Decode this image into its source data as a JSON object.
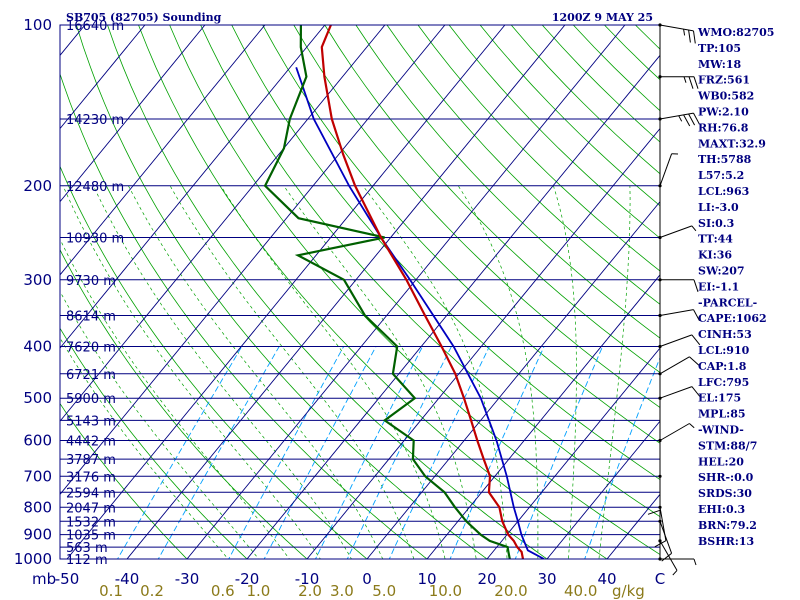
{
  "header": {
    "station": "SB705 (82705) Sounding",
    "time": "1200Z  9 MAY 25"
  },
  "axis": {
    "mb_label": "mb",
    "gkg_label": "g/kg"
  },
  "indices": [
    "WMO:82705",
    "TP:105",
    "MW:18",
    "FRZ:561",
    "WB0:582",
    "PW:2.10",
    "RH:76.8",
    "MAXT:32.9",
    "TH:5788",
    "L57:5.2",
    "LCL:963",
    "LI:-3.0",
    "SI:0.3",
    "TT:44",
    "KI:36",
    "SW:207",
    "EI:-1.1",
    "-PARCEL-",
    "CAPE:1062",
    "CINH:53",
    "LCL:910",
    "CAP:1.8",
    "LFC:795",
    "EL:175",
    "MPL:85",
    "-WIND-",
    "STM:88/7",
    "HEL:20",
    "SHR-:0.0",
    "SRDS:30",
    "EHI:0.3",
    "BRN:79.2",
    "BSHR:13"
  ],
  "chart_data": {
    "type": "skew-t",
    "title": "SB705 (82705) Sounding",
    "subtitle": "1200Z  9 MAY 25",
    "xlabel": "",
    "ylabel": "mb",
    "y_scale": "log",
    "ylim": [
      1000,
      100
    ],
    "x_ticks": [
      "-50",
      "-40",
      "-30",
      "-20",
      "-10",
      "0",
      "10",
      "20",
      "30",
      "40",
      "C"
    ],
    "x_tick_values": [
      -50,
      -40,
      -30,
      -20,
      -10,
      0,
      10,
      20,
      30,
      40
    ],
    "pressure_levels": [
      {
        "p": 100,
        "label": "100",
        "height": "16640 m"
      },
      {
        "p": 150,
        "label": "",
        "height": "14230 m"
      },
      {
        "p": 200,
        "label": "200",
        "height": "12480 m"
      },
      {
        "p": 250,
        "label": "",
        "height": "10930 m"
      },
      {
        "p": 300,
        "label": "300",
        "height": "9730 m"
      },
      {
        "p": 350,
        "label": "",
        "height": "8614 m"
      },
      {
        "p": 400,
        "label": "400",
        "height": "7620 m"
      },
      {
        "p": 450,
        "label": "",
        "height": "6721 m"
      },
      {
        "p": 500,
        "label": "500",
        "height": "5900 m"
      },
      {
        "p": 550,
        "label": "",
        "height": "5143 m"
      },
      {
        "p": 600,
        "label": "600",
        "height": "4442 m"
      },
      {
        "p": 650,
        "label": "",
        "height": "3787 m"
      },
      {
        "p": 700,
        "label": "700",
        "height": "3176 m"
      },
      {
        "p": 750,
        "label": "",
        "height": "2594 m"
      },
      {
        "p": 800,
        "label": "800",
        "height": "2047 m"
      },
      {
        "p": 850,
        "label": "",
        "height": "1532 m"
      },
      {
        "p": 900,
        "label": "900",
        "height": "1035 m"
      },
      {
        "p": 950,
        "label": "",
        "height": "563 m"
      },
      {
        "p": 1000,
        "label": "1000",
        "height": "112 m"
      }
    ],
    "mixing_ratio_labels": [
      "0.1",
      "0.2",
      "0.6",
      "1.0",
      "2.0",
      "3.0",
      "5.0",
      "10.0",
      "20.0",
      "40.0"
    ],
    "mixing_ratio_values": [
      0.1,
      0.2,
      0.6,
      1.0,
      2.0,
      3.0,
      5.0,
      10.0,
      20.0,
      40.0
    ],
    "temperature": [
      {
        "p": 1000,
        "t": 26.0
      },
      {
        "p": 970,
        "t": 24.8
      },
      {
        "p": 950,
        "t": 23.4
      },
      {
        "p": 925,
        "t": 22.0
      },
      {
        "p": 900,
        "t": 20.2
      },
      {
        "p": 850,
        "t": 17.4
      },
      {
        "p": 800,
        "t": 15.0
      },
      {
        "p": 750,
        "t": 11.2
      },
      {
        "p": 700,
        "t": 9.2
      },
      {
        "p": 650,
        "t": 5.8
      },
      {
        "p": 600,
        "t": 2.2
      },
      {
        "p": 550,
        "t": -1.6
      },
      {
        "p": 500,
        "t": -5.8
      },
      {
        "p": 450,
        "t": -10.6
      },
      {
        "p": 400,
        "t": -16.6
      },
      {
        "p": 350,
        "t": -23.6
      },
      {
        "p": 300,
        "t": -31.6
      },
      {
        "p": 250,
        "t": -41.6
      },
      {
        "p": 200,
        "t": -53.0
      },
      {
        "p": 175,
        "t": -59.2
      },
      {
        "p": 150,
        "t": -66.0
      },
      {
        "p": 125,
        "t": -73.0
      },
      {
        "p": 110,
        "t": -77.5
      },
      {
        "p": 100,
        "t": -79.0
      }
    ],
    "dewpoint": [
      {
        "p": 1000,
        "t": 23.8
      },
      {
        "p": 970,
        "t": 22.6
      },
      {
        "p": 950,
        "t": 21.8
      },
      {
        "p": 925,
        "t": 18.0
      },
      {
        "p": 900,
        "t": 15.6
      },
      {
        "p": 850,
        "t": 11.4
      },
      {
        "p": 800,
        "t": 7.6
      },
      {
        "p": 750,
        "t": 3.8
      },
      {
        "p": 700,
        "t": -1.6
      },
      {
        "p": 650,
        "t": -6.0
      },
      {
        "p": 600,
        "t": -8.4
      },
      {
        "p": 550,
        "t": -16.0
      },
      {
        "p": 500,
        "t": -14.0
      },
      {
        "p": 450,
        "t": -21.0
      },
      {
        "p": 400,
        "t": -24.0
      },
      {
        "p": 350,
        "t": -33.6
      },
      {
        "p": 300,
        "t": -42.0
      },
      {
        "p": 270,
        "t": -53.0
      },
      {
        "p": 250,
        "t": -41.0
      },
      {
        "p": 230,
        "t": -58.0
      },
      {
        "p": 200,
        "t": -68.0
      },
      {
        "p": 170,
        "t": -70.0
      },
      {
        "p": 150,
        "t": -73.0
      },
      {
        "p": 125,
        "t": -76.0
      },
      {
        "p": 110,
        "t": -81.0
      },
      {
        "p": 100,
        "t": -84.0
      }
    ],
    "parcel": [
      {
        "p": 1000,
        "t": 29.5
      },
      {
        "p": 963,
        "t": 25.6
      },
      {
        "p": 900,
        "t": 22.4
      },
      {
        "p": 850,
        "t": 20.0
      },
      {
        "p": 800,
        "t": 17.4
      },
      {
        "p": 700,
        "t": 12.0
      },
      {
        "p": 600,
        "t": 5.4
      },
      {
        "p": 500,
        "t": -3.0
      },
      {
        "p": 400,
        "t": -14.6
      },
      {
        "p": 300,
        "t": -31.0
      },
      {
        "p": 250,
        "t": -41.6
      },
      {
        "p": 200,
        "t": -54.0
      },
      {
        "p": 150,
        "t": -69.0
      },
      {
        "p": 120,
        "t": -79.0
      }
    ],
    "wind": [
      {
        "p": 1000,
        "dir": 90,
        "spd": 5
      },
      {
        "p": 925,
        "dir": 150,
        "spd": 5
      },
      {
        "p": 850,
        "dir": 160,
        "spd": 10
      },
      {
        "p": 800,
        "dir": 170,
        "spd": 10
      },
      {
        "p": 700,
        "dir": 180,
        "spd": 10
      },
      {
        "p": 600,
        "dir": 60,
        "spd": 5
      },
      {
        "p": 500,
        "dir": 70,
        "spd": 10
      },
      {
        "p": 450,
        "dir": 60,
        "spd": 10
      },
      {
        "p": 400,
        "dir": 70,
        "spd": 10
      },
      {
        "p": 350,
        "dir": 80,
        "spd": 10
      },
      {
        "p": 300,
        "dir": 90,
        "spd": 10
      },
      {
        "p": 250,
        "dir": 70,
        "spd": 5
      },
      {
        "p": 200,
        "dir": 20,
        "spd": 5
      },
      {
        "p": 150,
        "dir": 80,
        "spd": 35
      },
      {
        "p": 125,
        "dir": 90,
        "spd": 25
      },
      {
        "p": 100,
        "dir": 100,
        "spd": 25
      }
    ],
    "colors": {
      "frame": "#000080",
      "isobar": "#000080",
      "isotherm": "#000080",
      "dry_adiabat": "#00a000",
      "moist_adiabat": "#00a000",
      "mixing_ratio": "#00a0ff",
      "temperature": "#c00000",
      "dewpoint": "#006000",
      "parcel": "#0000c0",
      "wind": "#000000"
    }
  }
}
